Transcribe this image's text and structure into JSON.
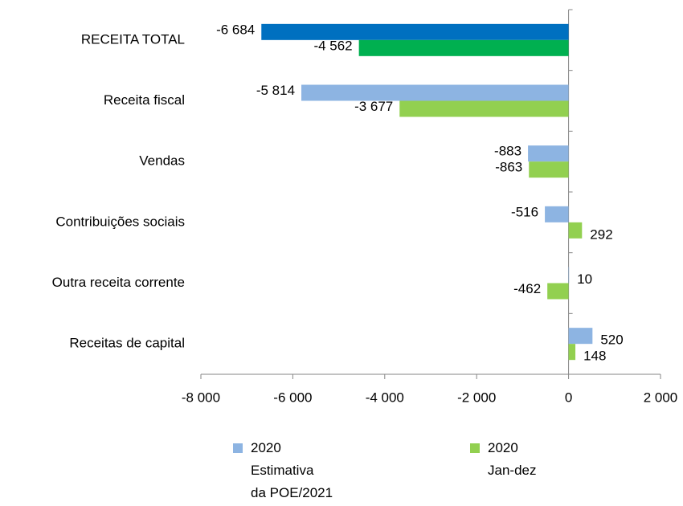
{
  "chart_data": {
    "type": "bar",
    "orientation": "horizontal",
    "categories": [
      "RECEITA TOTAL",
      "Receita fiscal",
      "Vendas",
      "Contribuições sociais",
      "Outra receita corrente",
      "Receitas de capital"
    ],
    "series": [
      {
        "name": "2020\nEstimativa\nda POE/2021",
        "color": "#8db4e2",
        "colors": [
          "#0070c0",
          "#8db4e2",
          "#8db4e2",
          "#8db4e2",
          "#8db4e2",
          "#8db4e2"
        ],
        "values": [
          -6684,
          -5814,
          -883,
          -516,
          10,
          520
        ],
        "value_labels": [
          "-6 684",
          "-5 814",
          "-883",
          "-516",
          "10",
          "520"
        ]
      },
      {
        "name": "2020\nJan-dez",
        "color": "#92d050",
        "colors": [
          "#00b050",
          "#92d050",
          "#92d050",
          "#92d050",
          "#92d050",
          "#92d050"
        ],
        "values": [
          -4562,
          -3677,
          -863,
          292,
          -462,
          148
        ],
        "value_labels": [
          "-4 562",
          "-3 677",
          "-863",
          "292",
          "-462",
          "148"
        ]
      }
    ],
    "xlim": [
      -8000,
      2000
    ],
    "xticks": [
      {
        "value": -8000,
        "label": "-8 000"
      },
      {
        "value": -6000,
        "label": "-6 000"
      },
      {
        "value": -4000,
        "label": "-4 000"
      },
      {
        "value": -2000,
        "label": "-2 000"
      },
      0,
      {
        "value": 2000,
        "label": "2 000"
      }
    ],
    "legend": "bottom"
  }
}
